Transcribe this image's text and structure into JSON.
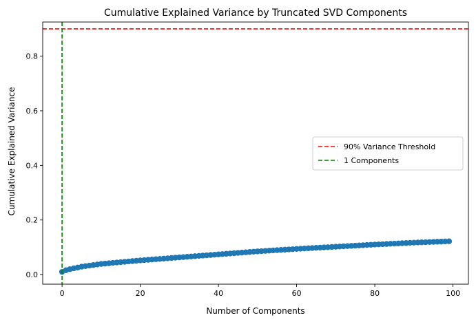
{
  "chart_data": {
    "type": "scatter",
    "title": "Cumulative Explained Variance by Truncated SVD Components",
    "xlabel": "Number of Components",
    "ylabel": "Cumulative Explained Variance",
    "xlim": [
      -4.95,
      103.95
    ],
    "ylim": [
      -0.035,
      0.925
    ],
    "xticks": [
      0,
      20,
      40,
      60,
      80,
      100
    ],
    "yticks": [
      0.0,
      0.2,
      0.4,
      0.6,
      0.8
    ],
    "xtick_labels": [
      "0",
      "20",
      "40",
      "60",
      "80",
      "100"
    ],
    "ytick_labels": [
      "0.0",
      "0.2",
      "0.4",
      "0.6",
      "0.8"
    ],
    "grid": false,
    "legend_position": "center-right",
    "series": [
      {
        "type": "line+markers",
        "color": "#1f77b4",
        "x_start": 0,
        "x_end": 99,
        "anchor_points": [
          [
            0,
            0.01
          ],
          [
            1,
            0.016
          ],
          [
            2,
            0.02
          ],
          [
            5,
            0.029
          ],
          [
            10,
            0.039
          ],
          [
            20,
            0.052
          ],
          [
            30,
            0.063
          ],
          [
            40,
            0.074
          ],
          [
            50,
            0.085
          ],
          [
            60,
            0.094
          ],
          [
            70,
            0.102
          ],
          [
            80,
            0.11
          ],
          [
            90,
            0.117
          ],
          [
            99,
            0.122
          ]
        ]
      }
    ],
    "reference_lines": [
      {
        "orientation": "horizontal",
        "value": 0.9,
        "color": "#ff0000",
        "style": "dashed",
        "label": "90% Variance Threshold"
      },
      {
        "orientation": "vertical",
        "value": 0,
        "color": "#008000",
        "style": "dashed",
        "label": "1 Components"
      }
    ]
  }
}
